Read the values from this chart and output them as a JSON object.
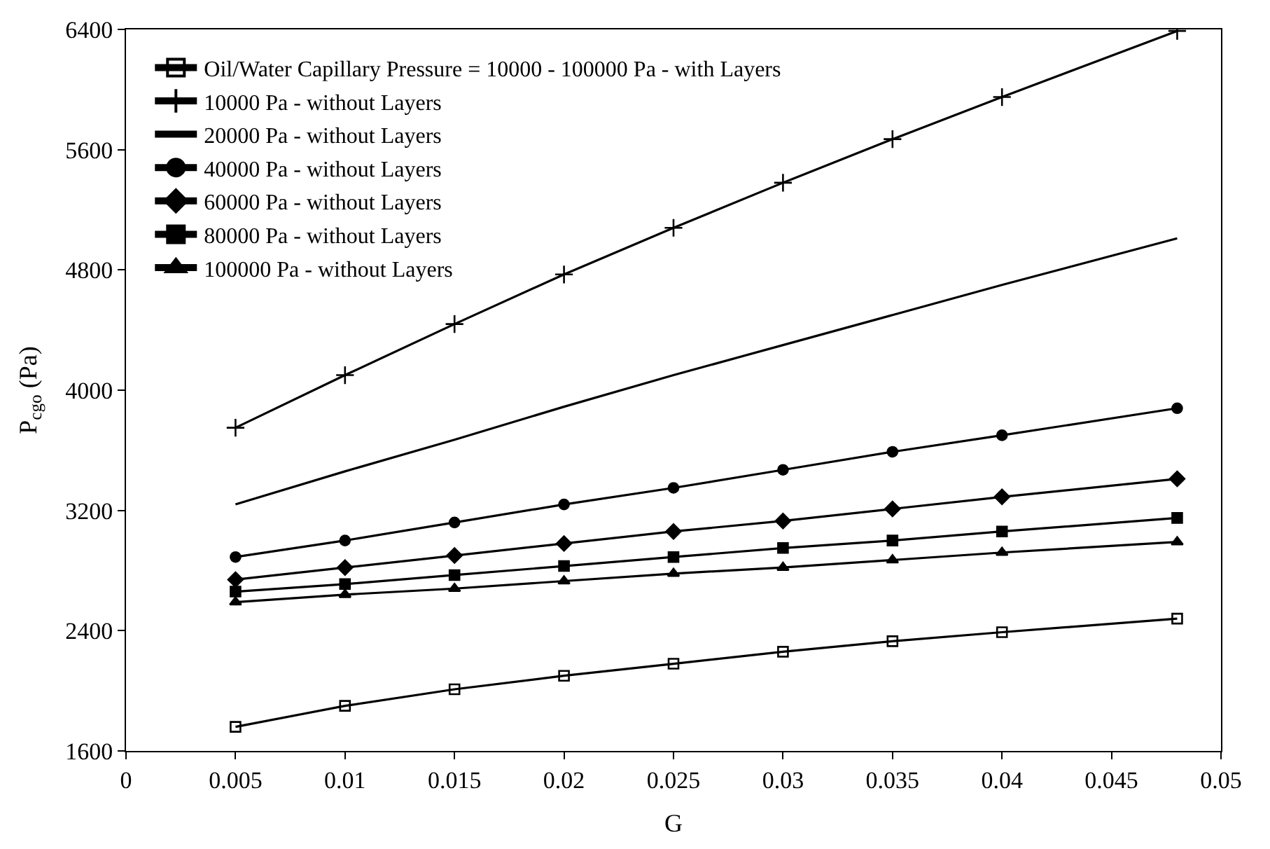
{
  "chart_data": {
    "type": "line",
    "xlabel": "G",
    "ylabel": "P$_{cgo}$ (Pa)",
    "x": [
      0.005,
      0.01,
      0.015,
      0.02,
      0.025,
      0.03,
      0.035,
      0.04,
      0.048
    ],
    "xlim": [
      0,
      0.05
    ],
    "xticks": [
      0,
      0.005,
      0.01,
      0.015,
      0.02,
      0.025,
      0.03,
      0.035,
      0.04,
      0.045,
      0.05
    ],
    "ylim": [
      1600,
      6400
    ],
    "yticks": [
      1600,
      2400,
      3200,
      4000,
      4800,
      5600,
      6400
    ],
    "legend": "top left",
    "line_style": "solid",
    "series": [
      {
        "name": "Oil/Water Capillary Pressure = 10000 - 100000 Pa - with Layers",
        "color": "#000000",
        "marker": "square-open",
        "values": [
          1760,
          1900,
          2010,
          2100,
          2180,
          2260,
          2330,
          2390,
          2480
        ]
      },
      {
        "name": "10000 Pa - without Layers",
        "color": "#000000",
        "marker": "cross",
        "values": [
          3750,
          4100,
          4440,
          4770,
          5080,
          5380,
          5670,
          5950,
          6390
        ]
      },
      {
        "name": "20000 Pa - without Layers",
        "color": "#000000",
        "marker": "none",
        "values": [
          3240,
          3460,
          3670,
          3890,
          4100,
          4300,
          4500,
          4700,
          5010
        ]
      },
      {
        "name": "40000 Pa - without Layers",
        "color": "#000000",
        "marker": "circle",
        "values": [
          2890,
          3000,
          3120,
          3240,
          3350,
          3470,
          3590,
          3700,
          3880
        ]
      },
      {
        "name": "60000 Pa - without Layers",
        "color": "#000000",
        "marker": "diamond",
        "values": [
          2740,
          2820,
          2900,
          2980,
          3060,
          3130,
          3210,
          3290,
          3410
        ]
      },
      {
        "name": "80000 Pa - without Layers",
        "color": "#000000",
        "marker": "square",
        "values": [
          2660,
          2710,
          2770,
          2830,
          2890,
          2950,
          3000,
          3060,
          3150
        ]
      },
      {
        "name": "100000 Pa - without Layers",
        "color": "#000000",
        "marker": "triangle",
        "values": [
          2590,
          2640,
          2680,
          2730,
          2780,
          2820,
          2870,
          2920,
          2990
        ]
      }
    ]
  }
}
